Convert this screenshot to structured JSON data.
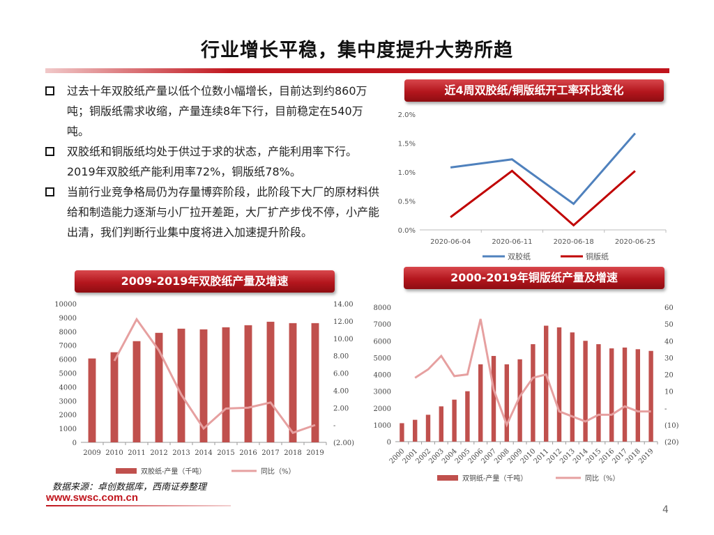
{
  "page": {
    "title": "行业增长平稳，集中度提升大势所趋",
    "page_number": "4",
    "source": "数据来源：卓创数据库，西南证券整理",
    "site": "www.swsc.com.cn"
  },
  "bullets": [
    "过去十年双胶纸产量以低个位数小幅增长，目前达到约860万吨；铜版纸需求收缩，产量连续8年下行，目前稳定在540万吨。",
    "双胶纸和铜版纸均处于供过于求的状态，产能利用率下行。2019年双胶纸产能利用率72%，铜版纸78%。",
    "当前行业竞争格局仍为存量博弈阶段，此阶段下大厂的原材料供给和制造能力逐渐与小厂拉开差距，大厂扩产步伐不停，小产能出清，我们判断行业集中度将进入加速提升阶段。"
  ],
  "chart_data": [
    {
      "type": "line",
      "title": "近4周双胶纸/铜版纸开工率环比变化",
      "x": [
        "2020-06-04",
        "2020-06-11",
        "2020-06-18",
        "2020-06-25"
      ],
      "y_ticks": [
        "0.0%",
        "0.5%",
        "1.0%",
        "1.5%",
        "2.0%"
      ],
      "ylim": [
        0,
        2.0
      ],
      "series": [
        {
          "name": "双胶纸",
          "color": "#4f81bd",
          "values": [
            1.08,
            1.22,
            0.45,
            1.67
          ]
        },
        {
          "name": "铜版纸",
          "color": "#c00000",
          "values": [
            0.22,
            1.02,
            0.08,
            1.02
          ]
        }
      ],
      "legend": "bottom"
    },
    {
      "type": "bar+line",
      "title": "2009-2019年双胶纸产量及增速",
      "categories": [
        "2009",
        "2010",
        "2011",
        "2012",
        "2013",
        "2014",
        "2015",
        "2016",
        "2017",
        "2018",
        "2019"
      ],
      "left_ticks": [
        "0",
        "1000",
        "2000",
        "3000",
        "4000",
        "5000",
        "6000",
        "7000",
        "8000",
        "9000",
        "10000"
      ],
      "left_ylim": [
        0,
        10000
      ],
      "right_ticks": [
        "(2.00)",
        "-",
        "2.00",
        "4.00",
        "6.00",
        "8.00",
        "10.00",
        "12.00",
        "14.00"
      ],
      "right_ylim": [
        -2,
        14
      ],
      "series": [
        {
          "name": "双胶纸-产量（千吨）",
          "kind": "bar",
          "color": "#c0504d",
          "values": [
            6050,
            6500,
            7300,
            7900,
            8200,
            8150,
            8300,
            8450,
            8700,
            8600,
            8600
          ]
        },
        {
          "name": "同比（%）",
          "kind": "line",
          "color": "#e6a0a0",
          "values": [
            null,
            7.4,
            12.2,
            8.6,
            3.5,
            -0.4,
            1.9,
            2.0,
            2.6,
            -0.9,
            0.0
          ]
        }
      ],
      "legend": "bottom"
    },
    {
      "type": "bar+line",
      "title": "2000-2019年铜版纸产量及增速",
      "categories": [
        "2000",
        "2001",
        "2002",
        "2003",
        "2004",
        "2005",
        "2006",
        "2007",
        "2008",
        "2009",
        "2010",
        "2011",
        "2012",
        "2013",
        "2014",
        "2015",
        "2016",
        "2017",
        "2018",
        "2019"
      ],
      "left_ticks": [
        "0",
        "1000",
        "2000",
        "3000",
        "4000",
        "5000",
        "6000",
        "7000",
        "8000"
      ],
      "left_ylim": [
        0,
        8000
      ],
      "right_ticks": [
        "(20)",
        "(10)",
        "-",
        "10",
        "20",
        "30",
        "40",
        "50",
        "60"
      ],
      "right_ylim": [
        -20,
        60
      ],
      "series": [
        {
          "name": "双铜纸-产量（千吨）",
          "kind": "bar",
          "color": "#c0504d",
          "values": [
            1100,
            1300,
            1600,
            2100,
            2500,
            3000,
            4600,
            5100,
            4600,
            4900,
            5800,
            6900,
            6800,
            6500,
            6000,
            5800,
            5550,
            5600,
            5500,
            5400
          ]
        },
        {
          "name": "同比（%）",
          "kind": "line",
          "color": "#e6a0a0",
          "values": [
            null,
            18,
            23,
            31,
            19,
            20,
            53,
            11,
            -10,
            7,
            18,
            20,
            -2,
            -5,
            -8,
            -4,
            -4,
            1,
            -2,
            -2
          ]
        }
      ],
      "legend": "bottom"
    }
  ]
}
